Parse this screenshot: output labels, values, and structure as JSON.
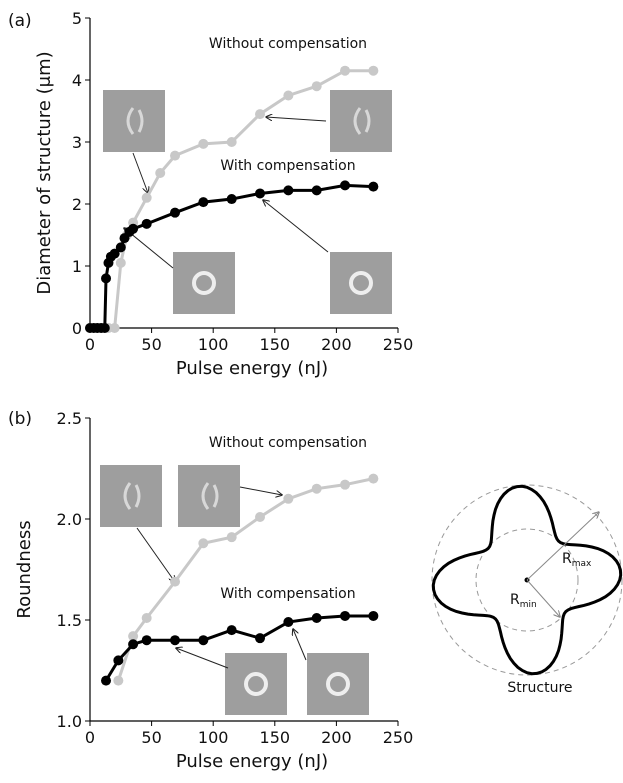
{
  "chart_data": [
    {
      "type": "line",
      "panel_label": "(a)",
      "x_label": "Pulse energy (nJ)",
      "y_label": "Diameter of structure (μm)",
      "xlim": [
        0,
        250
      ],
      "xticks": [
        0,
        50,
        100,
        150,
        200,
        250
      ],
      "ylim": [
        0,
        5
      ],
      "yticks": [
        0,
        1,
        2,
        3,
        4,
        5
      ],
      "series": [
        {
          "name": "Without compensation",
          "color": "#c8c8c8",
          "x": [
            0,
            5,
            10,
            15,
            20,
            25,
            30,
            35,
            46,
            57,
            69,
            92,
            115,
            138,
            161,
            184,
            207,
            230
          ],
          "values": [
            0,
            0,
            0,
            0,
            0,
            1.05,
            1.5,
            1.7,
            2.1,
            2.5,
            2.78,
            2.97,
            3.0,
            3.45,
            3.75,
            3.9,
            4.15,
            4.15
          ]
        },
        {
          "name": "With compensation",
          "color": "#000000",
          "x": [
            0,
            3,
            6,
            9,
            12,
            13,
            15,
            17,
            20,
            25,
            28,
            32,
            35,
            46,
            69,
            92,
            115,
            138,
            161,
            184,
            207,
            230
          ],
          "values": [
            0,
            0,
            0,
            0,
            0,
            0.8,
            1.05,
            1.15,
            1.2,
            1.3,
            1.45,
            1.55,
            1.6,
            1.68,
            1.86,
            2.03,
            2.08,
            2.17,
            2.22,
            2.22,
            2.3,
            2.28
          ]
        }
      ]
    },
    {
      "type": "line",
      "panel_label": "(b)",
      "x_label": "Pulse energy (nJ)",
      "y_label": "Roundness",
      "xlim": [
        0,
        250
      ],
      "xticks": [
        0,
        50,
        100,
        150,
        200,
        250
      ],
      "ylim": [
        1,
        2.5
      ],
      "yticks": [
        {
          "value": 1,
          "label": "1.0"
        },
        1.5,
        {
          "value": 2,
          "label": "2.0"
        },
        2.5
      ],
      "series": [
        {
          "name": "Without compensation",
          "color": "#c8c8c8",
          "x": [
            23,
            35,
            46,
            69,
            92,
            115,
            138,
            161,
            184,
            207,
            230
          ],
          "values": [
            1.2,
            1.42,
            1.51,
            1.69,
            1.88,
            1.91,
            2.01,
            2.1,
            2.15,
            2.17,
            2.2
          ]
        },
        {
          "name": "With compensation",
          "color": "#000000",
          "x": [
            13,
            23,
            35,
            46,
            69,
            92,
            115,
            138,
            161,
            184,
            207,
            230
          ],
          "values": [
            1.2,
            1.3,
            1.38,
            1.4,
            1.4,
            1.4,
            1.45,
            1.41,
            1.49,
            1.51,
            1.52,
            1.52
          ]
        }
      ]
    }
  ],
  "diagram": {
    "r_max": {
      "main": "R",
      "sub": "max"
    },
    "r_min": {
      "main": "R",
      "sub": "min"
    },
    "label": "Structure"
  }
}
